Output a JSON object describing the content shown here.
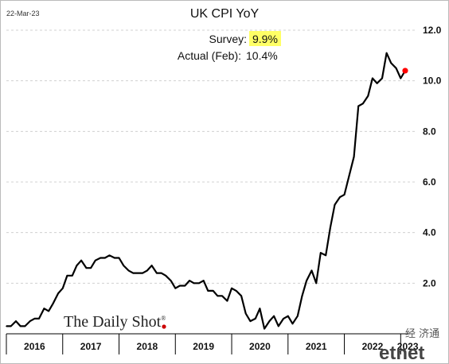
{
  "header": {
    "date": "22-Mar-23",
    "title": "UK CPI YoY"
  },
  "annotation": {
    "survey_label": "Survey:",
    "survey_value": "9.9%",
    "actual_label": "Actual (Feb):",
    "actual_value": "10.4%",
    "highlight_color": "#ffff66"
  },
  "branding": {
    "source": "The Daily Shot",
    "registered_mark": "®",
    "watermark_cn": "经 济通",
    "watermark_en": "etnet"
  },
  "colors": {
    "line": "#000000",
    "marker": "#ff0000",
    "grid": "#d0d0d0",
    "axis": "#000000"
  },
  "chart_data": {
    "type": "line",
    "title": "UK CPI YoY",
    "xlabel": "",
    "ylabel": "",
    "ylim": [
      0,
      12
    ],
    "yticks": [
      2.0,
      4.0,
      6.0,
      8.0,
      10.0,
      12.0
    ],
    "ytick_labels": [
      "2.0",
      "4.0",
      "6.0",
      "8.0",
      "10.0",
      "12.0"
    ],
    "year_labels": [
      "2016",
      "2017",
      "2018",
      "2019",
      "2020",
      "2021",
      "2022",
      "2023"
    ],
    "x_start": 2016,
    "x_end": 2023.25,
    "grid": true,
    "legend": "none",
    "series": [
      {
        "values": [
          [
            2016.0,
            0.3
          ],
          [
            2016.08,
            0.3
          ],
          [
            2016.17,
            0.5
          ],
          [
            2016.25,
            0.3
          ],
          [
            2016.33,
            0.3
          ],
          [
            2016.42,
            0.5
          ],
          [
            2016.5,
            0.6
          ],
          [
            2016.58,
            0.6
          ],
          [
            2016.67,
            1.0
          ],
          [
            2016.75,
            0.9
          ],
          [
            2016.83,
            1.2
          ],
          [
            2016.92,
            1.6
          ],
          [
            2017.0,
            1.8
          ],
          [
            2017.08,
            2.3
          ],
          [
            2017.17,
            2.3
          ],
          [
            2017.25,
            2.7
          ],
          [
            2017.33,
            2.9
          ],
          [
            2017.42,
            2.6
          ],
          [
            2017.5,
            2.6
          ],
          [
            2017.58,
            2.9
          ],
          [
            2017.67,
            3.0
          ],
          [
            2017.75,
            3.0
          ],
          [
            2017.83,
            3.1
          ],
          [
            2017.92,
            3.0
          ],
          [
            2018.0,
            3.0
          ],
          [
            2018.08,
            2.7
          ],
          [
            2018.17,
            2.5
          ],
          [
            2018.25,
            2.4
          ],
          [
            2018.33,
            2.4
          ],
          [
            2018.42,
            2.4
          ],
          [
            2018.5,
            2.5
          ],
          [
            2018.58,
            2.7
          ],
          [
            2018.67,
            2.4
          ],
          [
            2018.75,
            2.4
          ],
          [
            2018.83,
            2.3
          ],
          [
            2018.92,
            2.1
          ],
          [
            2019.0,
            1.8
          ],
          [
            2019.08,
            1.9
          ],
          [
            2019.17,
            1.9
          ],
          [
            2019.25,
            2.1
          ],
          [
            2019.33,
            2.0
          ],
          [
            2019.42,
            2.0
          ],
          [
            2019.5,
            2.1
          ],
          [
            2019.58,
            1.7
          ],
          [
            2019.67,
            1.7
          ],
          [
            2019.75,
            1.5
          ],
          [
            2019.83,
            1.5
          ],
          [
            2019.92,
            1.3
          ],
          [
            2020.0,
            1.8
          ],
          [
            2020.08,
            1.7
          ],
          [
            2020.17,
            1.5
          ],
          [
            2020.25,
            0.8
          ],
          [
            2020.33,
            0.5
          ],
          [
            2020.42,
            0.6
          ],
          [
            2020.5,
            1.0
          ],
          [
            2020.58,
            0.2
          ],
          [
            2020.67,
            0.5
          ],
          [
            2020.75,
            0.7
          ],
          [
            2020.83,
            0.3
          ],
          [
            2020.92,
            0.6
          ],
          [
            2021.0,
            0.7
          ],
          [
            2021.08,
            0.4
          ],
          [
            2021.17,
            0.7
          ],
          [
            2021.25,
            1.5
          ],
          [
            2021.33,
            2.1
          ],
          [
            2021.42,
            2.5
          ],
          [
            2021.5,
            2.0
          ],
          [
            2021.58,
            3.2
          ],
          [
            2021.67,
            3.1
          ],
          [
            2021.75,
            4.2
          ],
          [
            2021.83,
            5.1
          ],
          [
            2021.92,
            5.4
          ],
          [
            2022.0,
            5.5
          ],
          [
            2022.08,
            6.2
          ],
          [
            2022.17,
            7.0
          ],
          [
            2022.25,
            9.0
          ],
          [
            2022.33,
            9.1
          ],
          [
            2022.42,
            9.4
          ],
          [
            2022.5,
            10.1
          ],
          [
            2022.58,
            9.9
          ],
          [
            2022.67,
            10.1
          ],
          [
            2022.75,
            11.1
          ],
          [
            2022.83,
            10.7
          ],
          [
            2022.92,
            10.5
          ],
          [
            2023.0,
            10.1
          ],
          [
            2023.08,
            10.4
          ]
        ]
      }
    ],
    "highlight_point": [
      2023.08,
      10.4
    ]
  }
}
